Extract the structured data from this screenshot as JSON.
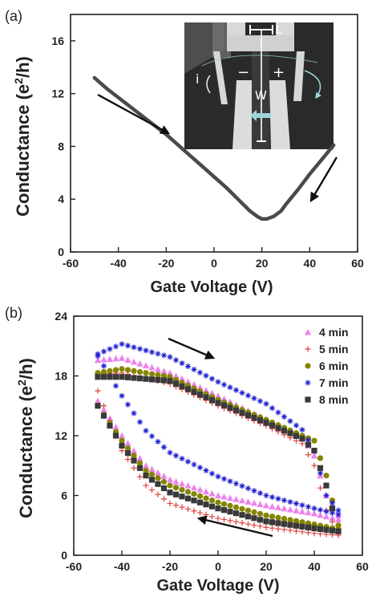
{
  "chart_data": [
    {
      "panel_label": "(a)",
      "type": "line",
      "xlabel": "Gate Voltage (V)",
      "ylabel_main": "Conductance (e",
      "ylabel_sup": "2",
      "ylabel_end": "/h)",
      "xlim": [
        -60,
        60
      ],
      "ylim": [
        0,
        18
      ],
      "xticks": [
        "-60",
        "-40",
        "-20",
        "0",
        "20",
        "40",
        "60"
      ],
      "yticks": [
        "0",
        "4",
        "8",
        "12",
        "16"
      ],
      "series": [
        {
          "x": [
            -50,
            -45,
            -40,
            -35,
            -30,
            -25,
            -20,
            -15,
            -10,
            -5,
            0,
            5,
            10,
            15,
            18,
            20,
            22,
            25,
            28,
            30,
            35,
            40,
            45,
            50
          ],
          "y": [
            13.2,
            12.4,
            11.7,
            11.0,
            10.3,
            9.6,
            8.9,
            8.1,
            7.3,
            6.5,
            5.7,
            4.9,
            4.0,
            3.1,
            2.7,
            2.5,
            2.5,
            2.7,
            3.1,
            3.6,
            4.7,
            5.9,
            7.0,
            8.1
          ],
          "color": "#4a4a4a"
        }
      ],
      "inset": {
        "labels": {
          "L": "L",
          "W": "W",
          "i": "i",
          "minus": "−",
          "plus": "+"
        }
      }
    },
    {
      "panel_label": "(b)",
      "type": "scatter",
      "xlabel": "Gate Voltage (V)",
      "ylabel_main": "Conductance (e",
      "ylabel_sup": "2",
      "ylabel_end": "/h)",
      "xlim": [
        -60,
        60
      ],
      "ylim": [
        0,
        24
      ],
      "xticks": [
        "-60",
        "-40",
        "-20",
        "0",
        "20",
        "40",
        "60"
      ],
      "yticks": [
        "0",
        "6",
        "12",
        "18",
        "24"
      ],
      "legend_position": "top-right",
      "series": [
        {
          "name": "4 min",
          "marker": "triangle",
          "color": "#ee82ee",
          "upper": [
            [
              -50,
              19.6
            ],
            [
              -40,
              19.8
            ],
            [
              -20,
              18.3
            ],
            [
              0,
              16.0
            ],
            [
              20,
              13.6
            ],
            [
              35,
              12.0
            ],
            [
              40,
              10.0
            ],
            [
              45,
              6.0
            ],
            [
              50,
              4.0
            ]
          ],
          "lower": [
            [
              50,
              3.6
            ],
            [
              40,
              4.2
            ],
            [
              20,
              5.0
            ],
            [
              0,
              6.0
            ],
            [
              -20,
              7.6
            ],
            [
              -30,
              9.0
            ],
            [
              -40,
              12.0
            ],
            [
              -50,
              15.5
            ]
          ]
        },
        {
          "name": "5 min",
          "marker": "plus",
          "color": "#e0413f",
          "upper": [
            [
              -50,
              18.2
            ],
            [
              -40,
              18.3
            ],
            [
              -20,
              17.2
            ],
            [
              0,
              15.0
            ],
            [
              20,
              13.0
            ],
            [
              35,
              11.2
            ],
            [
              40,
              9.0
            ],
            [
              45,
              4.5
            ],
            [
              50,
              2.2
            ]
          ],
          "lower": [
            [
              50,
              2.0
            ],
            [
              40,
              2.2
            ],
            [
              20,
              2.8
            ],
            [
              0,
              3.7
            ],
            [
              -20,
              5.2
            ],
            [
              -30,
              7.0
            ],
            [
              -40,
              10.5
            ],
            [
              -50,
              16.5
            ]
          ]
        },
        {
          "name": "6 min",
          "marker": "circle",
          "color": "#858500",
          "upper": [
            [
              -50,
              18.3
            ],
            [
              -40,
              18.7
            ],
            [
              -20,
              17.9
            ],
            [
              0,
              15.6
            ],
            [
              20,
              13.6
            ],
            [
              35,
              12.0
            ],
            [
              40,
              11.5
            ],
            [
              45,
              8.0
            ],
            [
              50,
              3.0
            ]
          ],
          "lower": [
            [
              50,
              2.6
            ],
            [
              40,
              3.1
            ],
            [
              20,
              4.0
            ],
            [
              0,
              5.3
            ],
            [
              -20,
              7.0
            ],
            [
              -30,
              8.5
            ],
            [
              -40,
              11.5
            ],
            [
              -50,
              15.0
            ]
          ]
        },
        {
          "name": "7 min",
          "marker": "star",
          "color": "#1f1fcf",
          "upper": [
            [
              -50,
              20.2
            ],
            [
              -40,
              21.2
            ],
            [
              -20,
              19.9
            ],
            [
              0,
              17.4
            ],
            [
              20,
              15.2
            ],
            [
              35,
              12.6
            ],
            [
              40,
              10.5
            ],
            [
              45,
              6.0
            ],
            [
              50,
              4.5
            ]
          ],
          "lower": [
            [
              50,
              4.1
            ],
            [
              40,
              4.7
            ],
            [
              20,
              6.0
            ],
            [
              0,
              7.9
            ],
            [
              -20,
              10.3
            ],
            [
              -30,
              12.5
            ],
            [
              -40,
              16.0
            ],
            [
              -50,
              20.0
            ]
          ]
        },
        {
          "name": "8 min",
          "marker": "square",
          "color": "#3a3a3a",
          "upper": [
            [
              -50,
              17.9
            ],
            [
              -40,
              17.9
            ],
            [
              -20,
              17.5
            ],
            [
              0,
              15.3
            ],
            [
              20,
              13.3
            ],
            [
              35,
              11.7
            ],
            [
              40,
              10.5
            ],
            [
              45,
              7.0
            ],
            [
              50,
              2.4
            ]
          ],
          "lower": [
            [
              50,
              2.4
            ],
            [
              40,
              2.7
            ],
            [
              20,
              3.4
            ],
            [
              0,
              4.7
            ],
            [
              -20,
              6.3
            ],
            [
              -30,
              8.0
            ],
            [
              -40,
              11.0
            ],
            [
              -50,
              15.0
            ]
          ]
        }
      ]
    }
  ]
}
